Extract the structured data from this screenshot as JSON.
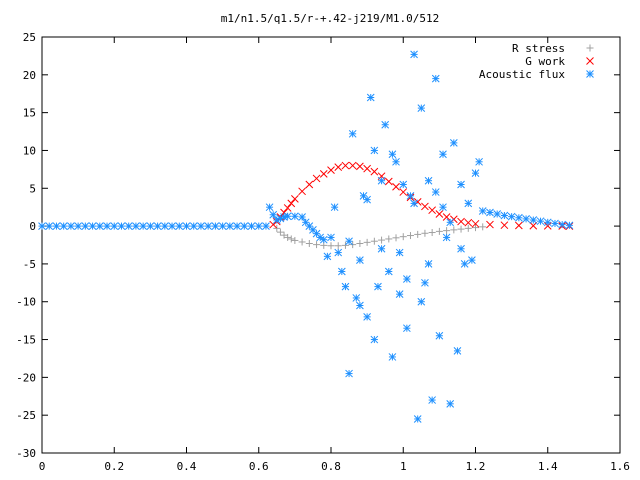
{
  "chart_data": {
    "type": "scatter",
    "title": "m1/n1.5/q1.5/r-+.42-j219/M1.0/512",
    "xlim": [
      0,
      1.6
    ],
    "ylim": [
      -30,
      25
    ],
    "x_ticks": [
      "0",
      "0.2",
      "0.4",
      "0.6",
      "0.8",
      "1",
      "1.2",
      "1.4",
      "1.6"
    ],
    "y_ticks": [
      "-30",
      "-25",
      "-20",
      "-15",
      "-10",
      "-5",
      "0",
      "5",
      "10",
      "15",
      "20",
      "25"
    ],
    "x_tick_values": [
      0,
      0.2,
      0.4,
      0.6,
      0.8,
      1.0,
      1.2,
      1.4,
      1.6
    ],
    "y_tick_values": [
      -30,
      -25,
      -20,
      -15,
      -10,
      -5,
      0,
      5,
      10,
      15,
      20,
      25
    ],
    "grid": false,
    "legend_position": "top-right",
    "series": [
      {
        "name": "R stress",
        "marker": "plus",
        "color": "#a0a0a0",
        "points": [
          [
            0.65,
            -0.3
          ],
          [
            0.66,
            -0.8
          ],
          [
            0.67,
            -1.2
          ],
          [
            0.68,
            -1.5
          ],
          [
            0.69,
            -1.7
          ],
          [
            0.7,
            -1.9
          ],
          [
            0.72,
            -2.1
          ],
          [
            0.74,
            -2.3
          ],
          [
            0.76,
            -2.45
          ],
          [
            0.78,
            -2.55
          ],
          [
            0.8,
            -2.6
          ],
          [
            0.82,
            -2.6
          ],
          [
            0.84,
            -2.55
          ],
          [
            0.86,
            -2.45
          ],
          [
            0.88,
            -2.3
          ],
          [
            0.9,
            -2.15
          ],
          [
            0.92,
            -2.0
          ],
          [
            0.94,
            -1.85
          ],
          [
            0.96,
            -1.7
          ],
          [
            0.98,
            -1.55
          ],
          [
            1.0,
            -1.4
          ],
          [
            1.02,
            -1.25
          ],
          [
            1.04,
            -1.1
          ],
          [
            1.06,
            -0.95
          ],
          [
            1.08,
            -0.85
          ],
          [
            1.1,
            -0.7
          ],
          [
            1.12,
            -0.6
          ],
          [
            1.14,
            -0.5
          ],
          [
            1.16,
            -0.4
          ],
          [
            1.18,
            -0.3
          ],
          [
            1.2,
            -0.2
          ],
          [
            1.22,
            -0.1
          ]
        ]
      },
      {
        "name": "G work",
        "marker": "cross",
        "color": "#ff0000",
        "points": [
          [
            0.64,
            0.2
          ],
          [
            0.65,
            0.6
          ],
          [
            0.66,
            1.2
          ],
          [
            0.67,
            1.8
          ],
          [
            0.68,
            2.4
          ],
          [
            0.69,
            3.0
          ],
          [
            0.7,
            3.6
          ],
          [
            0.72,
            4.6
          ],
          [
            0.74,
            5.5
          ],
          [
            0.76,
            6.3
          ],
          [
            0.78,
            6.9
          ],
          [
            0.8,
            7.4
          ],
          [
            0.82,
            7.8
          ],
          [
            0.84,
            8.0
          ],
          [
            0.86,
            8.0
          ],
          [
            0.88,
            7.9
          ],
          [
            0.9,
            7.6
          ],
          [
            0.92,
            7.2
          ],
          [
            0.94,
            6.6
          ],
          [
            0.96,
            5.9
          ],
          [
            0.98,
            5.2
          ],
          [
            1.0,
            4.5
          ],
          [
            1.02,
            3.8
          ],
          [
            1.04,
            3.2
          ],
          [
            1.06,
            2.6
          ],
          [
            1.08,
            2.1
          ],
          [
            1.1,
            1.6
          ],
          [
            1.12,
            1.2
          ],
          [
            1.14,
            0.9
          ],
          [
            1.16,
            0.6
          ],
          [
            1.18,
            0.45
          ],
          [
            1.2,
            0.3
          ],
          [
            1.24,
            0.2
          ],
          [
            1.28,
            0.12
          ],
          [
            1.32,
            0.08
          ],
          [
            1.36,
            0.05
          ],
          [
            1.4,
            0.03
          ],
          [
            1.44,
            0.01
          ],
          [
            1.46,
            0.0
          ]
        ]
      },
      {
        "name": "Acoustic flux",
        "marker": "star",
        "color": "#1e90ff",
        "points": [
          [
            0.0,
            0
          ],
          [
            0.02,
            0
          ],
          [
            0.04,
            0
          ],
          [
            0.06,
            0
          ],
          [
            0.08,
            0
          ],
          [
            0.1,
            0
          ],
          [
            0.12,
            0
          ],
          [
            0.14,
            0
          ],
          [
            0.16,
            0
          ],
          [
            0.18,
            0
          ],
          [
            0.2,
            0
          ],
          [
            0.22,
            0
          ],
          [
            0.24,
            0
          ],
          [
            0.26,
            0
          ],
          [
            0.28,
            0
          ],
          [
            0.3,
            0
          ],
          [
            0.32,
            0
          ],
          [
            0.34,
            0
          ],
          [
            0.36,
            0
          ],
          [
            0.38,
            0
          ],
          [
            0.4,
            0
          ],
          [
            0.42,
            0
          ],
          [
            0.44,
            0
          ],
          [
            0.46,
            0
          ],
          [
            0.48,
            0
          ],
          [
            0.5,
            0
          ],
          [
            0.52,
            0
          ],
          [
            0.54,
            0
          ],
          [
            0.56,
            0
          ],
          [
            0.58,
            0
          ],
          [
            0.6,
            0
          ],
          [
            0.62,
            0
          ],
          [
            0.63,
            2.5
          ],
          [
            0.64,
            1.5
          ],
          [
            0.65,
            0.8
          ],
          [
            0.66,
            1.0
          ],
          [
            0.67,
            1.2
          ],
          [
            0.68,
            1.3
          ],
          [
            0.7,
            1.3
          ],
          [
            0.72,
            1.2
          ],
          [
            0.73,
            0.5
          ],
          [
            0.74,
            0.0
          ],
          [
            0.75,
            -0.5
          ],
          [
            0.76,
            -1.0
          ],
          [
            0.77,
            -1.5
          ],
          [
            0.78,
            -1.8
          ],
          [
            0.8,
            -1.5
          ],
          [
            0.79,
            -4.0
          ],
          [
            0.82,
            -3.5
          ],
          [
            0.83,
            -6.0
          ],
          [
            0.84,
            -8.0
          ],
          [
            0.85,
            -19.5
          ],
          [
            0.86,
            12.2
          ],
          [
            0.87,
            -9.5
          ],
          [
            0.88,
            -4.5
          ],
          [
            0.89,
            4.0
          ],
          [
            0.9,
            -12.0
          ],
          [
            0.91,
            17.0
          ],
          [
            0.92,
            -15.0
          ],
          [
            0.93,
            -8.0
          ],
          [
            0.94,
            -3.0
          ],
          [
            0.95,
            13.4
          ],
          [
            0.96,
            -6.0
          ],
          [
            0.97,
            -17.3
          ],
          [
            0.98,
            8.5
          ],
          [
            0.99,
            -9.0
          ],
          [
            1.0,
            5.5
          ],
          [
            1.01,
            -13.5
          ],
          [
            1.02,
            4.0
          ],
          [
            1.03,
            22.7
          ],
          [
            1.04,
            -25.5
          ],
          [
            1.05,
            15.6
          ],
          [
            1.06,
            -7.5
          ],
          [
            1.07,
            6.0
          ],
          [
            1.08,
            -23.0
          ],
          [
            1.09,
            19.5
          ],
          [
            1.1,
            -14.5
          ],
          [
            1.11,
            9.5
          ],
          [
            1.12,
            -1.5
          ],
          [
            1.13,
            -23.5
          ],
          [
            1.14,
            11.0
          ],
          [
            1.15,
            -16.5
          ],
          [
            1.16,
            5.5
          ],
          [
            1.17,
            -5.0
          ],
          [
            1.18,
            3.0
          ],
          [
            1.19,
            -4.5
          ],
          [
            1.2,
            7.0
          ],
          [
            1.21,
            8.5
          ],
          [
            0.81,
            2.5
          ],
          [
            0.85,
            -2.0
          ],
          [
            0.9,
            3.5
          ],
          [
            0.94,
            6.0
          ],
          [
            0.99,
            -3.5
          ],
          [
            1.03,
            3.0
          ],
          [
            1.07,
            -5.0
          ],
          [
            1.11,
            2.5
          ],
          [
            1.16,
            -3.0
          ],
          [
            0.88,
            -10.5
          ],
          [
            0.97,
            9.5
          ],
          [
            1.05,
            -10.0
          ],
          [
            1.13,
            0.5
          ],
          [
            0.92,
            10.0
          ],
          [
            1.01,
            -7.0
          ],
          [
            1.09,
            4.5
          ],
          [
            1.22,
            2.0
          ],
          [
            1.24,
            1.8
          ],
          [
            1.26,
            1.6
          ],
          [
            1.28,
            1.4
          ],
          [
            1.3,
            1.25
          ],
          [
            1.32,
            1.1
          ],
          [
            1.34,
            0.95
          ],
          [
            1.36,
            0.8
          ],
          [
            1.38,
            0.65
          ],
          [
            1.4,
            0.5
          ],
          [
            1.42,
            0.35
          ],
          [
            1.44,
            0.2
          ],
          [
            1.46,
            0.1
          ]
        ]
      }
    ]
  }
}
